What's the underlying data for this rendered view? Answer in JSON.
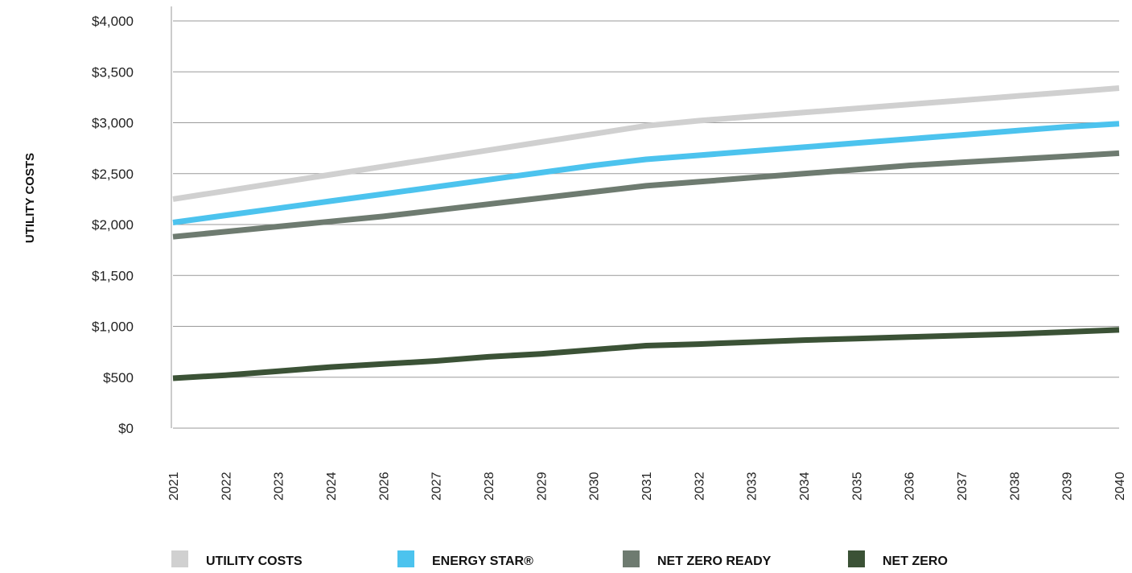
{
  "chart_data": {
    "type": "line",
    "title": "",
    "xlabel": "",
    "ylabel": "UTILITY COSTS",
    "ylim": [
      0,
      4000
    ],
    "yticks": [
      "$0",
      "$500",
      "$1,000",
      "$1,500",
      "$2,000",
      "$2,500",
      "$3,000",
      "$3,500",
      "$4,000"
    ],
    "ytick_values": [
      0,
      500,
      1000,
      1500,
      2000,
      2500,
      3000,
      3500,
      4000
    ],
    "categories": [
      "2021",
      "2022",
      "2023",
      "2024",
      "2026",
      "2027",
      "2028",
      "2029",
      "2030",
      "2031",
      "2032",
      "2033",
      "2034",
      "2035",
      "2036",
      "2037",
      "2038",
      "2039",
      "2040"
    ],
    "grid": true,
    "legend_position": "bottom",
    "series": [
      {
        "name": "UTILITY COSTS",
        "color": "#d0d0d0",
        "values": [
          2250,
          2330,
          2410,
          2490,
          2570,
          2650,
          2730,
          2810,
          2890,
          2970,
          3020,
          3060,
          3100,
          3140,
          3180,
          3220,
          3260,
          3300,
          3340
        ]
      },
      {
        "name": "ENERGY STAR®",
        "color": "#4cc3ee",
        "values": [
          2020,
          2090,
          2160,
          2230,
          2300,
          2370,
          2440,
          2510,
          2580,
          2640,
          2680,
          2720,
          2760,
          2800,
          2840,
          2880,
          2920,
          2960,
          2990
        ]
      },
      {
        "name": "NET ZERO READY",
        "color": "#6e7b70",
        "values": [
          1880,
          1930,
          1980,
          2030,
          2080,
          2140,
          2200,
          2260,
          2320,
          2380,
          2420,
          2460,
          2500,
          2540,
          2580,
          2610,
          2640,
          2670,
          2700
        ]
      },
      {
        "name": "NET ZERO",
        "color": "#3b5236",
        "values": [
          490,
          520,
          560,
          600,
          630,
          660,
          700,
          730,
          770,
          810,
          825,
          845,
          865,
          880,
          895,
          910,
          925,
          945,
          965
        ]
      }
    ]
  }
}
